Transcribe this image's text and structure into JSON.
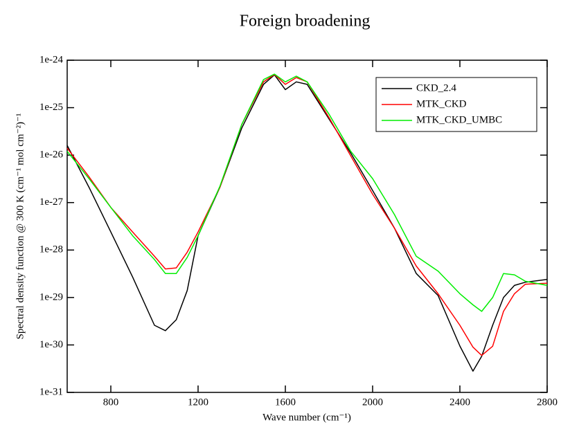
{
  "chart_data": {
    "type": "line",
    "title": "Foreign broadening",
    "x_label": "Wave number (cm⁻¹)",
    "y_label": "Spectral density function @ 300 K (cm⁻¹ mol cm⁻²)⁻¹",
    "log_y": true,
    "legend": "upper right",
    "xlim": [
      600,
      2800
    ],
    "xticks": [
      800,
      1200,
      1600,
      2000,
      2400,
      2800
    ],
    "ylim": [
      1e-31,
      1e-24
    ],
    "yticks": [
      {
        "value": 1e-31,
        "label": "1e-31"
      },
      {
        "value": 1e-30,
        "label": "1e-30"
      },
      {
        "value": 1e-29,
        "label": "1e-29"
      },
      {
        "value": 1e-28,
        "label": "1e-28"
      },
      {
        "value": 1e-27,
        "label": "1e-27"
      },
      {
        "value": 1e-26,
        "label": "1e-26"
      },
      {
        "value": 1e-25,
        "label": "1e-25"
      },
      {
        "value": 1e-24,
        "label": "1e-24"
      }
    ],
    "x": [
      600,
      700,
      800,
      900,
      1000,
      1050,
      1100,
      1150,
      1200,
      1300,
      1400,
      1500,
      1550,
      1600,
      1650,
      1700,
      1800,
      1900,
      2000,
      2100,
      2200,
      2300,
      2400,
      2460,
      2500,
      2550,
      2600,
      2650,
      2700,
      2800
    ],
    "series": [
      {
        "name": "CKD_2.4",
        "color": "#000000",
        "values": [
          1.6e-26,
          2.1e-27,
          2.4e-28,
          2.7e-29,
          2.6e-30,
          2e-30,
          3.4e-30,
          1.4e-29,
          2e-28,
          2.1e-27,
          3.7e-26,
          3.1e-25,
          4.9e-25,
          2.4e-25,
          3.5e-25,
          3.1e-25,
          5.8e-26,
          1.1e-26,
          1.8e-27,
          2.9e-28,
          3.2e-29,
          1.1e-29,
          9.5e-31,
          2.8e-31,
          5.8e-31,
          2.6e-30,
          1e-29,
          1.8e-29,
          2.1e-29,
          2.4e-29
        ]
      },
      {
        "name": "MTK_CKD",
        "color": "#ff0000",
        "values": [
          1.4e-26,
          3.5e-27,
          7.9e-28,
          2.4e-28,
          7.4e-29,
          4e-29,
          4.2e-29,
          9e-29,
          2.4e-28,
          2.1e-27,
          4.4e-26,
          3.5e-25,
          5e-25,
          3.1e-25,
          4.3e-25,
          3.5e-25,
          6.2e-26,
          9.6e-27,
          1.5e-27,
          2.9e-28,
          4.6e-29,
          1.2e-29,
          2.6e-30,
          9e-31,
          6e-31,
          9.4e-31,
          5.1e-30,
          1.2e-29,
          1.9e-29,
          2e-29
        ]
      },
      {
        "name": "MTK_CKD_UMBC",
        "color": "#00ee00",
        "values": [
          1.2e-26,
          3.2e-27,
          7.9e-28,
          2e-28,
          6.3e-29,
          3.2e-29,
          3.2e-29,
          7e-29,
          2e-28,
          2.2e-27,
          4.4e-26,
          3.9e-25,
          5.1e-25,
          3.5e-25,
          4.6e-25,
          3.5e-25,
          7.3e-26,
          1.2e-26,
          3.2e-27,
          5.6e-28,
          7.4e-29,
          3.6e-29,
          1.2e-29,
          7e-30,
          5.1e-30,
          1e-29,
          3.2e-29,
          3e-29,
          2.2e-29,
          1.8e-29
        ]
      }
    ]
  }
}
